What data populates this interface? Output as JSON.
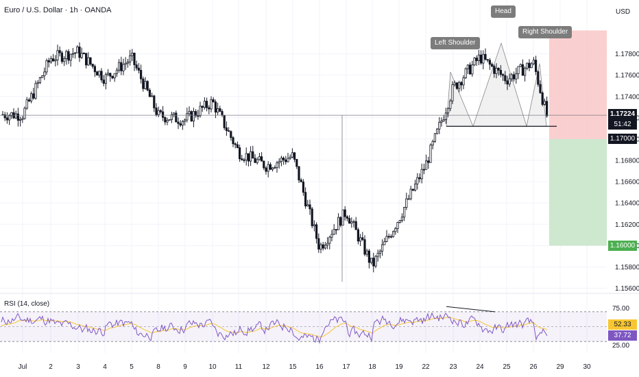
{
  "chart_data": {
    "type": "candlestick",
    "title": "Euro / U.S. Dollar · 1h · OANDA",
    "currency": "USD",
    "price_axis_ticks": [
      "1.17800",
      "1.17600",
      "1.17400",
      "1.17200",
      "1.17000",
      "1.16800",
      "1.16600",
      "1.16400",
      "1.16200",
      "1.16000",
      "1.15800",
      "1.15600"
    ],
    "date_axis_ticks": [
      "Jul",
      "2",
      "3",
      "4",
      "5",
      "8",
      "9",
      "10",
      "11",
      "12",
      "15",
      "16",
      "17",
      "18",
      "19",
      "22",
      "23",
      "24",
      "25",
      "26",
      "29",
      "30"
    ],
    "price_range": [
      1.1553,
      1.1802
    ],
    "close_path": [
      {
        "date": "Jul",
        "price": 1.1723
      },
      {
        "date": "2",
        "price": 1.1776
      },
      {
        "date": "3",
        "price": 1.1782
      },
      {
        "date": "4",
        "price": 1.1757
      },
      {
        "date": "5",
        "price": 1.1776
      },
      {
        "date": "8",
        "price": 1.1722
      },
      {
        "date": "9",
        "price": 1.1718
      },
      {
        "date": "10",
        "price": 1.1735
      },
      {
        "date": "11",
        "price": 1.1688
      },
      {
        "date": "12",
        "price": 1.1675
      },
      {
        "date": "15",
        "price": 1.1684
      },
      {
        "date": "16",
        "price": 1.1598
      },
      {
        "date": "17",
        "price": 1.1632
      },
      {
        "date": "18",
        "price": 1.1581
      },
      {
        "date": "19",
        "price": 1.1626
      },
      {
        "date": "22",
        "price": 1.1676
      },
      {
        "date": "23",
        "price": 1.1748
      },
      {
        "date": "24",
        "price": 1.1777
      },
      {
        "date": "25",
        "price": 1.1756
      },
      {
        "date": "26",
        "price": 1.1772
      },
      {
        "date": "26.5",
        "price": 1.1722
      }
    ],
    "current_price": "1.17224",
    "countdown": "51:42",
    "reference_price": 1.17224,
    "neckline_price": 1.1712,
    "stop_level": "1.17000",
    "target_level": "1.16000",
    "stop_zone": [
      1.17,
      1.1802
    ],
    "target_zone": [
      1.16,
      1.17
    ],
    "annotations": [
      {
        "text": "Left Shoulder",
        "date": "23",
        "price": 1.1765
      },
      {
        "text": "Head",
        "date": "24.5",
        "price": 1.179
      },
      {
        "text": "Right Shoulder",
        "date": "26",
        "price": 1.1772
      }
    ],
    "rsi": {
      "label": "RSI (14, close)",
      "ticks": [
        "75.00",
        "25.00"
      ],
      "upper": 70,
      "lower": 30,
      "rsi_value": "37.72",
      "ma_value": "52.33",
      "rsi_color": "#7e57c2",
      "ma_color": "#f7c631"
    },
    "colors": {
      "stop_zone": "#f9c7c7",
      "target_zone": "#c8e6c9",
      "candle": "#131722",
      "pattern_fill": "#ececec"
    }
  }
}
